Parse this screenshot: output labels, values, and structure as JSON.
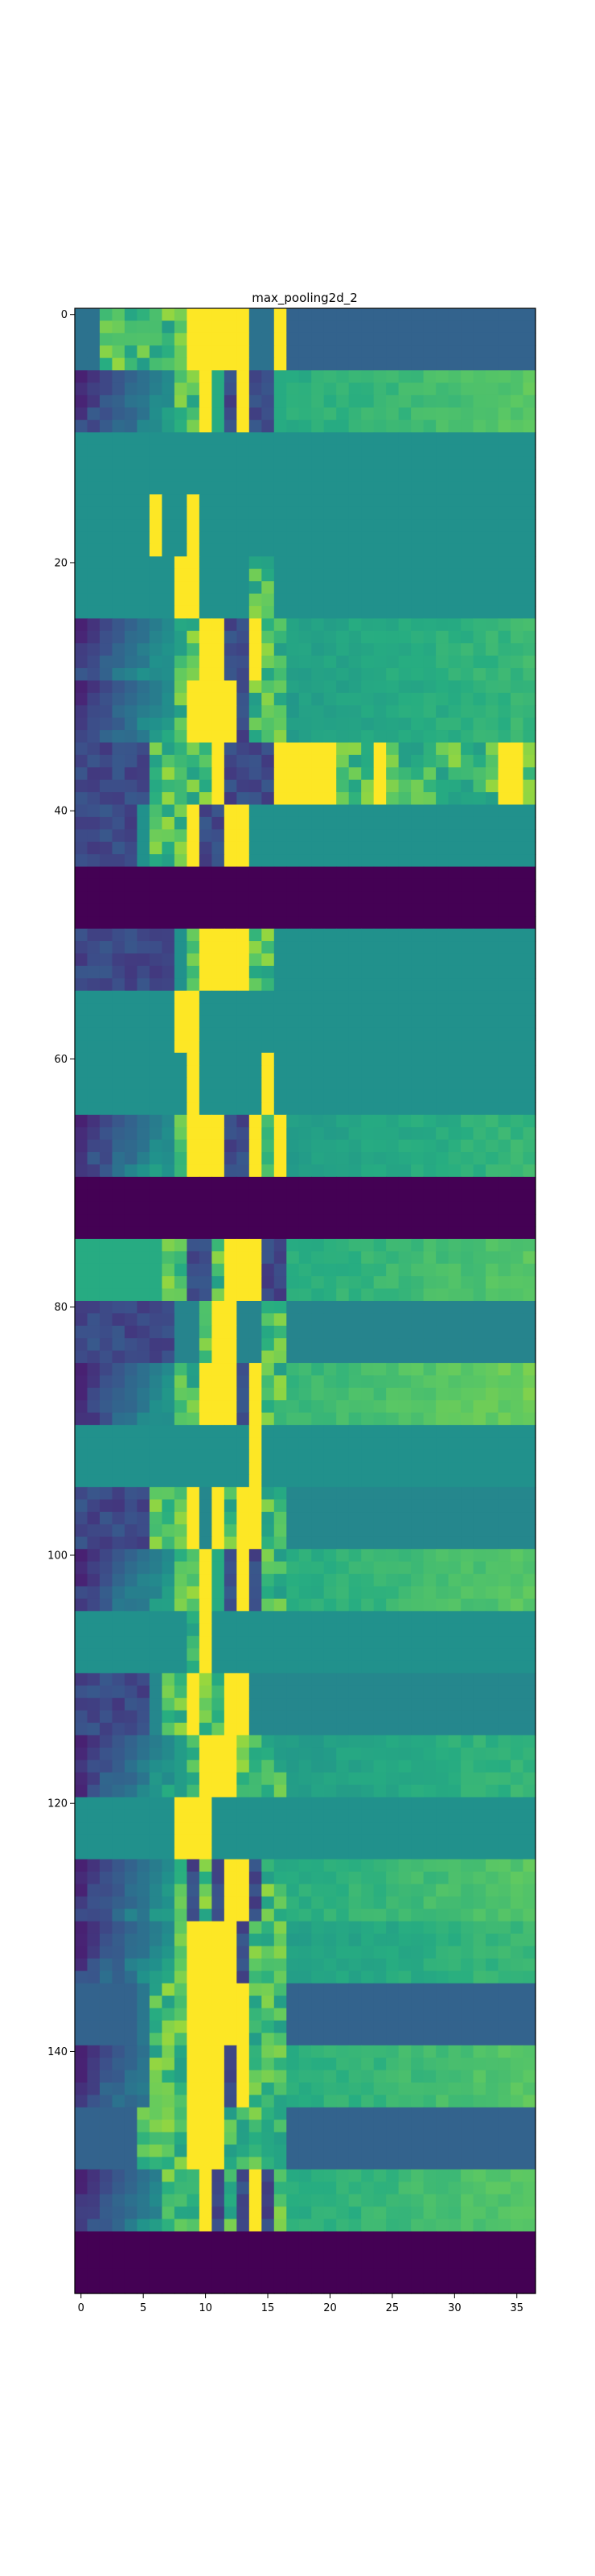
{
  "chart_data": {
    "type": "heatmap",
    "title": "max_pooling2d_2",
    "colormap": "viridis",
    "grid": false,
    "xlim": [
      -0.5,
      36.5
    ],
    "ylim": [
      159.5,
      -0.5
    ],
    "xticks": [
      0,
      5,
      10,
      15,
      20,
      25,
      30,
      35
    ],
    "yticks": [
      0,
      20,
      40,
      60,
      80,
      100,
      120,
      140
    ],
    "n_cols": 37,
    "n_rows": 160,
    "bands": [
      {
        "y0": 0,
        "y1": 4,
        "base": 0.38,
        "hot": [
          [
            9,
            13
          ],
          [
            16,
            16
          ]
        ],
        "mid": [
          [
            2,
            8
          ]
        ],
        "dark": [
          [
            17,
            36
          ]
        ]
      },
      {
        "y0": 5,
        "y1": 9,
        "base": 0.62,
        "hot": [
          [
            10,
            10
          ],
          [
            13,
            13
          ]
        ],
        "mid": [
          [
            8,
            9
          ]
        ],
        "dark": [
          [
            0,
            7
          ],
          [
            12,
            12
          ],
          [
            14,
            15
          ]
        ],
        "gradient": true
      },
      {
        "y0": 10,
        "y1": 14,
        "base": 0.5,
        "hot": [],
        "mid": [],
        "dark": []
      },
      {
        "y0": 15,
        "y1": 19,
        "base": 0.5,
        "hot": [
          [
            6,
            6
          ],
          [
            9,
            9
          ]
        ],
        "mid": [],
        "dark": []
      },
      {
        "y0": 20,
        "y1": 24,
        "base": 0.5,
        "hot": [
          [
            8,
            9
          ]
        ],
        "mid": [
          [
            14,
            15
          ]
        ],
        "dark": []
      },
      {
        "y0": 25,
        "y1": 29,
        "base": 0.56,
        "hot": [
          [
            10,
            11
          ],
          [
            14,
            14
          ]
        ],
        "mid": [
          [
            8,
            9
          ],
          [
            15,
            16
          ]
        ],
        "dark": [
          [
            0,
            7
          ],
          [
            12,
            13
          ]
        ],
        "gradient": true
      },
      {
        "y0": 30,
        "y1": 34,
        "base": 0.55,
        "hot": [
          [
            9,
            12
          ]
        ],
        "mid": [
          [
            8,
            8
          ],
          [
            14,
            16
          ]
        ],
        "dark": [
          [
            0,
            7
          ],
          [
            13,
            13
          ]
        ],
        "gradient": true
      },
      {
        "y0": 35,
        "y1": 39,
        "base": 0.55,
        "hot": [
          [
            11,
            11
          ],
          [
            16,
            20
          ],
          [
            24,
            24
          ],
          [
            34,
            35
          ]
        ],
        "mid": [
          [
            6,
            10
          ],
          [
            21,
            36
          ]
        ],
        "dark": [
          [
            0,
            5
          ],
          [
            12,
            15
          ]
        ],
        "speckle": true
      },
      {
        "y0": 40,
        "y1": 44,
        "base": 0.5,
        "hot": [
          [
            9,
            9
          ],
          [
            12,
            13
          ]
        ],
        "mid": [
          [
            6,
            8
          ]
        ],
        "dark": [
          [
            10,
            11
          ],
          [
            0,
            4
          ]
        ]
      },
      {
        "y0": 45,
        "y1": 49,
        "base": 0.0,
        "hot": [],
        "mid": [],
        "dark": [],
        "solid": true
      },
      {
        "y0": 50,
        "y1": 54,
        "base": 0.5,
        "hot": [
          [
            10,
            13
          ]
        ],
        "mid": [
          [
            9,
            9
          ],
          [
            14,
            15
          ]
        ],
        "dark": [
          [
            0,
            7
          ]
        ]
      },
      {
        "y0": 55,
        "y1": 59,
        "base": 0.5,
        "hot": [
          [
            8,
            9
          ]
        ],
        "mid": [],
        "dark": []
      },
      {
        "y0": 60,
        "y1": 64,
        "base": 0.5,
        "hot": [
          [
            9,
            9
          ],
          [
            15,
            15
          ]
        ],
        "mid": [],
        "dark": []
      },
      {
        "y0": 65,
        "y1": 69,
        "base": 0.55,
        "hot": [
          [
            9,
            11
          ],
          [
            14,
            14
          ],
          [
            16,
            16
          ]
        ],
        "mid": [
          [
            8,
            8
          ],
          [
            15,
            15
          ]
        ],
        "dark": [
          [
            0,
            7
          ],
          [
            12,
            13
          ]
        ],
        "gradient": true
      },
      {
        "y0": 70,
        "y1": 74,
        "base": 0.0,
        "hot": [],
        "mid": [],
        "dark": [],
        "solid": true
      },
      {
        "y0": 75,
        "y1": 79,
        "base": 0.62,
        "hot": [
          [
            12,
            14
          ]
        ],
        "mid": [
          [
            7,
            8
          ],
          [
            11,
            11
          ]
        ],
        "dark": [
          [
            9,
            10
          ],
          [
            15,
            16
          ]
        ],
        "gradient": true
      },
      {
        "y0": 80,
        "y1": 84,
        "base": 0.45,
        "hot": [
          [
            11,
            12
          ]
        ],
        "mid": [
          [
            10,
            10
          ],
          [
            15,
            16
          ]
        ],
        "dark": [
          [
            0,
            7
          ]
        ]
      },
      {
        "y0": 85,
        "y1": 89,
        "base": 0.66,
        "hot": [
          [
            10,
            12
          ],
          [
            14,
            14
          ]
        ],
        "mid": [
          [
            8,
            9
          ],
          [
            15,
            16
          ]
        ],
        "dark": [
          [
            0,
            7
          ],
          [
            13,
            13
          ]
        ],
        "gradient": true
      },
      {
        "y0": 90,
        "y1": 94,
        "base": 0.5,
        "hot": [
          [
            14,
            14
          ]
        ],
        "mid": [],
        "dark": []
      },
      {
        "y0": 95,
        "y1": 99,
        "base": 0.46,
        "hot": [
          [
            9,
            9
          ],
          [
            11,
            11
          ],
          [
            13,
            14
          ]
        ],
        "mid": [
          [
            6,
            8
          ],
          [
            12,
            12
          ],
          [
            15,
            16
          ]
        ],
        "dark": [
          [
            0,
            5
          ]
        ]
      },
      {
        "y0": 100,
        "y1": 104,
        "base": 0.62,
        "hot": [
          [
            10,
            10
          ],
          [
            13,
            13
          ]
        ],
        "mid": [
          [
            8,
            9
          ],
          [
            15,
            16
          ]
        ],
        "dark": [
          [
            0,
            7
          ],
          [
            12,
            12
          ],
          [
            14,
            14
          ]
        ],
        "gradient": true
      },
      {
        "y0": 105,
        "y1": 109,
        "base": 0.5,
        "hot": [
          [
            10,
            10
          ]
        ],
        "mid": [
          [
            9,
            9
          ]
        ],
        "dark": []
      },
      {
        "y0": 110,
        "y1": 114,
        "base": 0.46,
        "hot": [
          [
            9,
            9
          ],
          [
            12,
            13
          ]
        ],
        "mid": [
          [
            7,
            8
          ],
          [
            10,
            11
          ]
        ],
        "dark": [
          [
            0,
            5
          ]
        ]
      },
      {
        "y0": 115,
        "y1": 119,
        "base": 0.55,
        "hot": [
          [
            10,
            12
          ]
        ],
        "mid": [
          [
            9,
            9
          ],
          [
            13,
            16
          ]
        ],
        "dark": [
          [
            0,
            7
          ]
        ],
        "gradient": true
      },
      {
        "y0": 120,
        "y1": 124,
        "base": 0.5,
        "hot": [
          [
            8,
            10
          ]
        ],
        "mid": [],
        "dark": []
      },
      {
        "y0": 125,
        "y1": 129,
        "base": 0.62,
        "hot": [
          [
            12,
            13
          ]
        ],
        "mid": [
          [
            8,
            10
          ],
          [
            15,
            16
          ]
        ],
        "dark": [
          [
            0,
            7
          ],
          [
            9,
            9
          ],
          [
            11,
            11
          ],
          [
            14,
            14
          ]
        ],
        "gradient": true
      },
      {
        "y0": 130,
        "y1": 134,
        "base": 0.56,
        "hot": [
          [
            9,
            12
          ]
        ],
        "mid": [
          [
            8,
            8
          ],
          [
            14,
            16
          ]
        ],
        "dark": [
          [
            0,
            7
          ],
          [
            13,
            13
          ]
        ],
        "gradient": true
      },
      {
        "y0": 135,
        "y1": 139,
        "base": 0.4,
        "hot": [
          [
            9,
            13
          ]
        ],
        "mid": [
          [
            6,
            8
          ],
          [
            14,
            16
          ]
        ],
        "dark": [
          [
            0,
            4
          ],
          [
            17,
            36
          ]
        ]
      },
      {
        "y0": 140,
        "y1": 144,
        "base": 0.62,
        "hot": [
          [
            9,
            11
          ],
          [
            13,
            13
          ]
        ],
        "mid": [
          [
            6,
            8
          ],
          [
            14,
            16
          ]
        ],
        "dark": [
          [
            0,
            5
          ],
          [
            12,
            12
          ]
        ],
        "gradient": true
      },
      {
        "y0": 145,
        "y1": 149,
        "base": 0.45,
        "hot": [
          [
            9,
            11
          ]
        ],
        "mid": [
          [
            5,
            8
          ],
          [
            12,
            16
          ]
        ],
        "dark": [
          [
            0,
            4
          ],
          [
            17,
            36
          ]
        ]
      },
      {
        "y0": 150,
        "y1": 154,
        "base": 0.62,
        "hot": [
          [
            10,
            10
          ],
          [
            14,
            14
          ]
        ],
        "mid": [
          [
            7,
            9
          ],
          [
            12,
            12
          ],
          [
            16,
            16
          ]
        ],
        "dark": [
          [
            0,
            6
          ],
          [
            11,
            11
          ],
          [
            13,
            13
          ],
          [
            15,
            15
          ]
        ],
        "gradient": true
      },
      {
        "y0": 155,
        "y1": 159,
        "base": 0.0,
        "hot": [],
        "mid": [],
        "dark": [],
        "solid": true
      }
    ]
  }
}
